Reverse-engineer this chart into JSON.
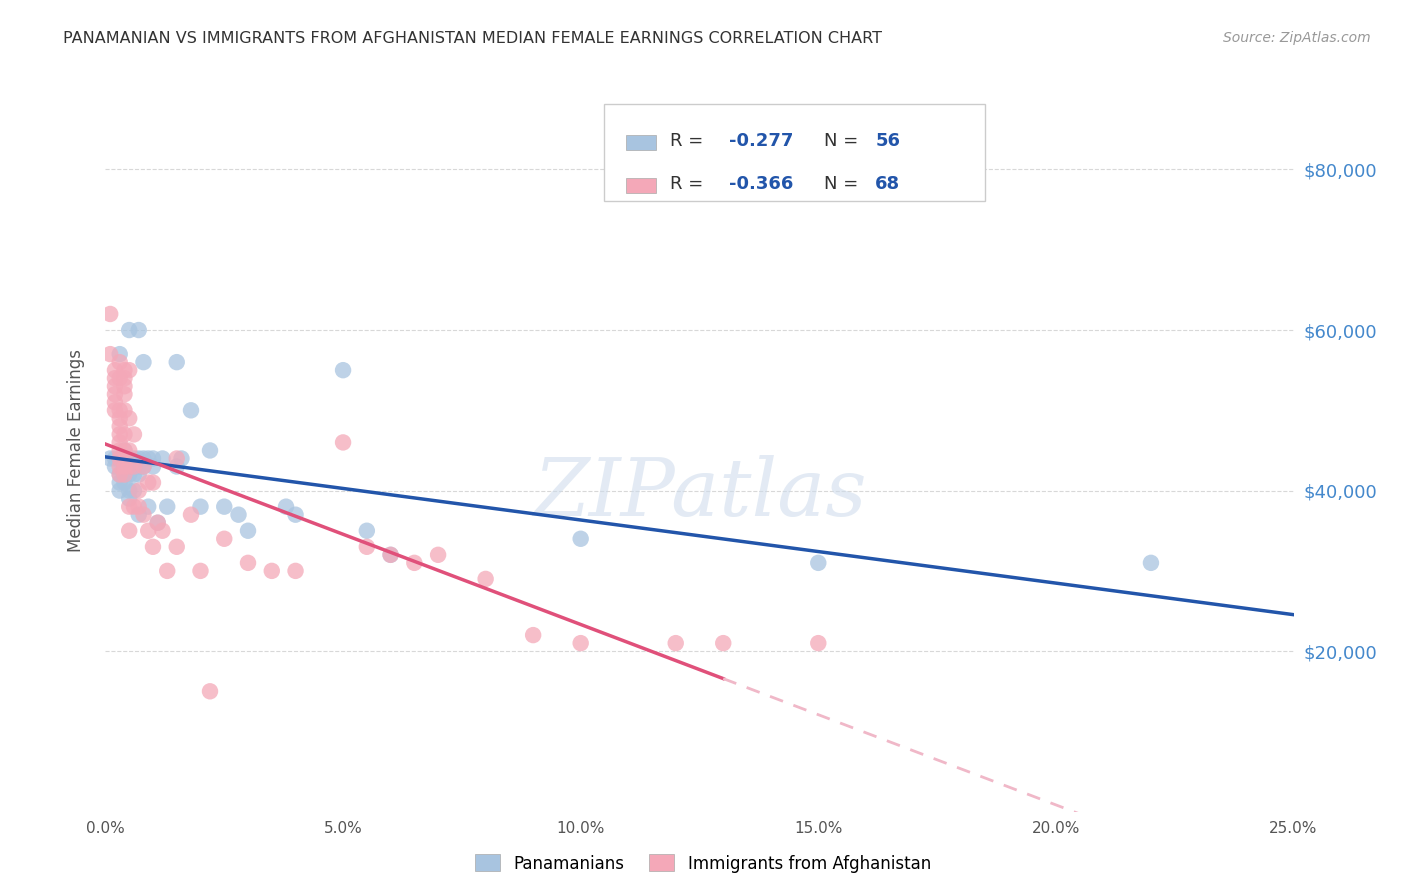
{
  "title": "PANAMANIAN VS IMMIGRANTS FROM AFGHANISTAN MEDIAN FEMALE EARNINGS CORRELATION CHART",
  "source": "Source: ZipAtlas.com",
  "ylabel": "Median Female Earnings",
  "yticks": [
    20000,
    40000,
    60000,
    80000
  ],
  "ytick_labels": [
    "$20,000",
    "$40,000",
    "$60,000",
    "$80,000"
  ],
  "xlim": [
    0.0,
    0.25
  ],
  "ylim": [
    0,
    90000
  ],
  "legend1_r": "-0.277",
  "legend1_n": "56",
  "legend2_r": "-0.366",
  "legend2_n": "68",
  "color_blue": "#a8c4e0",
  "color_pink": "#f4a8b8",
  "color_blue_line": "#2255aa",
  "color_pink_line": "#e0507a",
  "color_pink_dash": "#f0b8c8",
  "label1": "Panamanians",
  "label2": "Immigrants from Afghanistan",
  "blue_points": [
    [
      0.001,
      44000
    ],
    [
      0.002,
      44000
    ],
    [
      0.002,
      43000
    ],
    [
      0.003,
      57000
    ],
    [
      0.003,
      44000
    ],
    [
      0.003,
      42000
    ],
    [
      0.003,
      41000
    ],
    [
      0.003,
      40000
    ],
    [
      0.004,
      45000
    ],
    [
      0.004,
      44000
    ],
    [
      0.004,
      44000
    ],
    [
      0.004,
      43000
    ],
    [
      0.004,
      42000
    ],
    [
      0.004,
      41000
    ],
    [
      0.005,
      60000
    ],
    [
      0.005,
      44000
    ],
    [
      0.005,
      43000
    ],
    [
      0.005,
      42000
    ],
    [
      0.005,
      40000
    ],
    [
      0.005,
      39000
    ],
    [
      0.006,
      44000
    ],
    [
      0.006,
      43000
    ],
    [
      0.006,
      42000
    ],
    [
      0.006,
      40000
    ],
    [
      0.007,
      60000
    ],
    [
      0.007,
      44000
    ],
    [
      0.007,
      43000
    ],
    [
      0.007,
      42000
    ],
    [
      0.007,
      37000
    ],
    [
      0.008,
      56000
    ],
    [
      0.008,
      44000
    ],
    [
      0.008,
      43000
    ],
    [
      0.009,
      44000
    ],
    [
      0.009,
      38000
    ],
    [
      0.01,
      44000
    ],
    [
      0.01,
      43000
    ],
    [
      0.011,
      36000
    ],
    [
      0.012,
      44000
    ],
    [
      0.013,
      38000
    ],
    [
      0.015,
      56000
    ],
    [
      0.015,
      43000
    ],
    [
      0.016,
      44000
    ],
    [
      0.018,
      50000
    ],
    [
      0.02,
      38000
    ],
    [
      0.022,
      45000
    ],
    [
      0.025,
      38000
    ],
    [
      0.028,
      37000
    ],
    [
      0.03,
      35000
    ],
    [
      0.038,
      38000
    ],
    [
      0.04,
      37000
    ],
    [
      0.05,
      55000
    ],
    [
      0.055,
      35000
    ],
    [
      0.06,
      32000
    ],
    [
      0.1,
      34000
    ],
    [
      0.15,
      31000
    ],
    [
      0.22,
      31000
    ]
  ],
  "pink_points": [
    [
      0.001,
      62000
    ],
    [
      0.001,
      57000
    ],
    [
      0.002,
      55000
    ],
    [
      0.002,
      54000
    ],
    [
      0.002,
      53000
    ],
    [
      0.002,
      52000
    ],
    [
      0.002,
      51000
    ],
    [
      0.002,
      50000
    ],
    [
      0.003,
      56000
    ],
    [
      0.003,
      54000
    ],
    [
      0.003,
      50000
    ],
    [
      0.003,
      49000
    ],
    [
      0.003,
      48000
    ],
    [
      0.003,
      47000
    ],
    [
      0.003,
      46000
    ],
    [
      0.003,
      45000
    ],
    [
      0.003,
      44000
    ],
    [
      0.003,
      43000
    ],
    [
      0.003,
      42000
    ],
    [
      0.004,
      55000
    ],
    [
      0.004,
      54000
    ],
    [
      0.004,
      53000
    ],
    [
      0.004,
      52000
    ],
    [
      0.004,
      50000
    ],
    [
      0.004,
      47000
    ],
    [
      0.004,
      45000
    ],
    [
      0.004,
      43000
    ],
    [
      0.004,
      42000
    ],
    [
      0.005,
      55000
    ],
    [
      0.005,
      49000
    ],
    [
      0.005,
      45000
    ],
    [
      0.005,
      43000
    ],
    [
      0.005,
      38000
    ],
    [
      0.005,
      35000
    ],
    [
      0.006,
      47000
    ],
    [
      0.006,
      43000
    ],
    [
      0.006,
      38000
    ],
    [
      0.007,
      40000
    ],
    [
      0.007,
      38000
    ],
    [
      0.008,
      43000
    ],
    [
      0.008,
      37000
    ],
    [
      0.009,
      41000
    ],
    [
      0.009,
      35000
    ],
    [
      0.01,
      41000
    ],
    [
      0.01,
      33000
    ],
    [
      0.011,
      36000
    ],
    [
      0.012,
      35000
    ],
    [
      0.013,
      30000
    ],
    [
      0.015,
      44000
    ],
    [
      0.015,
      33000
    ],
    [
      0.018,
      37000
    ],
    [
      0.02,
      30000
    ],
    [
      0.022,
      15000
    ],
    [
      0.025,
      34000
    ],
    [
      0.03,
      31000
    ],
    [
      0.035,
      30000
    ],
    [
      0.04,
      30000
    ],
    [
      0.05,
      46000
    ],
    [
      0.055,
      33000
    ],
    [
      0.06,
      32000
    ],
    [
      0.065,
      31000
    ],
    [
      0.07,
      32000
    ],
    [
      0.08,
      29000
    ],
    [
      0.09,
      22000
    ],
    [
      0.1,
      21000
    ],
    [
      0.12,
      21000
    ],
    [
      0.13,
      21000
    ],
    [
      0.15,
      21000
    ]
  ],
  "pink_line_solid_end": 0.13,
  "watermark": "ZIPatlas",
  "background_color": "#ffffff",
  "grid_color": "#d8d8d8"
}
